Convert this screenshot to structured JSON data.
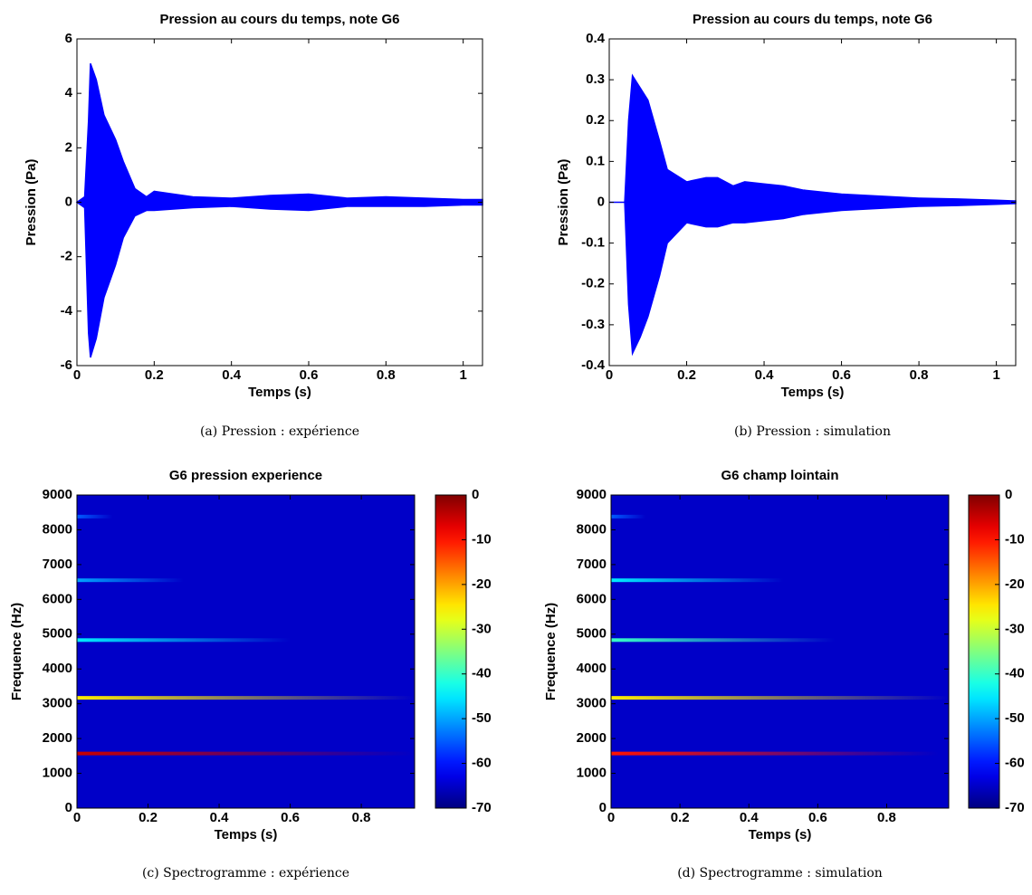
{
  "chart_data": [
    {
      "type": "envelope",
      "title": "Pression au cours du temps, note G6",
      "xlabel": "Temps (s)",
      "ylabel": "Pression (Pa)",
      "caption": "(a) Pression : expérience",
      "color": "#0000ff",
      "xlim": [
        0,
        1.05
      ],
      "xticks": [
        0,
        0.2,
        0.4,
        0.6,
        0.8,
        1
      ],
      "ylim": [
        -6,
        6
      ],
      "yticks": [
        -6,
        -4,
        -2,
        0,
        2,
        4,
        6
      ],
      "x": [
        0,
        0.02,
        0.03,
        0.035,
        0.05,
        0.07,
        0.1,
        0.12,
        0.15,
        0.18,
        0.2,
        0.25,
        0.3,
        0.4,
        0.5,
        0.6,
        0.7,
        0.8,
        0.9,
        1.0,
        1.05
      ],
      "upper": [
        0,
        0.2,
        3,
        5.1,
        4.5,
        3.2,
        2.3,
        1.5,
        0.5,
        0.2,
        0.4,
        0.3,
        0.2,
        0.15,
        0.25,
        0.3,
        0.15,
        0.2,
        0.15,
        0.1,
        0.1
      ],
      "lower": [
        0,
        -0.2,
        -4.8,
        -5.7,
        -5,
        -3.5,
        -2.3,
        -1.3,
        -0.5,
        -0.3,
        -0.3,
        -0.25,
        -0.2,
        -0.15,
        -0.25,
        -0.3,
        -0.15,
        -0.15,
        -0.15,
        -0.1,
        -0.1
      ]
    },
    {
      "type": "envelope",
      "title": "Pression au cours du temps, note G6",
      "xlabel": "Temps (s)",
      "ylabel": "Pression (Pa)",
      "caption": "(b) Pression : simulation",
      "color": "#0000ff",
      "xlim": [
        0,
        1.05
      ],
      "xticks": [
        0,
        0.2,
        0.4,
        0.6,
        0.8,
        1
      ],
      "ylim": [
        -0.4,
        0.4
      ],
      "yticks": [
        -0.4,
        -0.3,
        -0.2,
        -0.1,
        0,
        0.1,
        0.2,
        0.3,
        0.4
      ],
      "x": [
        0,
        0.04,
        0.05,
        0.06,
        0.08,
        0.1,
        0.13,
        0.15,
        0.2,
        0.25,
        0.28,
        0.32,
        0.35,
        0.4,
        0.45,
        0.5,
        0.6,
        0.7,
        0.8,
        0.9,
        1.0,
        1.05
      ],
      "upper": [
        0,
        0,
        0.2,
        0.31,
        0.28,
        0.25,
        0.15,
        0.08,
        0.05,
        0.06,
        0.06,
        0.04,
        0.05,
        0.045,
        0.04,
        0.03,
        0.02,
        0.015,
        0.01,
        0.008,
        0.005,
        0.003
      ],
      "lower": [
        0,
        0,
        -0.25,
        -0.37,
        -0.33,
        -0.28,
        -0.18,
        -0.1,
        -0.05,
        -0.06,
        -0.06,
        -0.05,
        -0.05,
        -0.045,
        -0.04,
        -0.03,
        -0.02,
        -0.015,
        -0.01,
        -0.008,
        -0.005,
        -0.003
      ]
    },
    {
      "type": "spectrogram",
      "title": "G6 pression  experience",
      "xlabel": "Temps (s)",
      "ylabel": "Frequence (Hz)",
      "caption": "(c) Spectrogramme : expérience",
      "xlim": [
        0,
        0.95
      ],
      "xticks": [
        0,
        0.2,
        0.4,
        0.6,
        0.8
      ],
      "ylim": [
        0,
        9000
      ],
      "yticks": [
        0,
        1000,
        2000,
        3000,
        4000,
        5000,
        6000,
        7000,
        8000,
        9000
      ],
      "clim": [
        -70,
        0
      ],
      "cticks": [
        0,
        -10,
        -20,
        -30,
        -40,
        -50,
        -60,
        -70
      ],
      "background": -65,
      "harmonics": [
        {
          "f": 1570,
          "level": -5,
          "end": 0.95
        },
        {
          "f": 3170,
          "level": -25,
          "end": 0.95
        },
        {
          "f": 4830,
          "level": -45,
          "end": 0.6
        },
        {
          "f": 6550,
          "level": -50,
          "end": 0.3
        },
        {
          "f": 8380,
          "level": -55,
          "end": 0.1
        }
      ]
    },
    {
      "type": "spectrogram",
      "title": "G6 champ lointain",
      "xlabel": "Temps (s)",
      "ylabel": "Frequence (Hz)",
      "caption": "(d) Spectrogramme : simulation",
      "xlim": [
        0,
        0.98
      ],
      "xticks": [
        0,
        0.2,
        0.4,
        0.6,
        0.8
      ],
      "ylim": [
        0,
        9000
      ],
      "yticks": [
        0,
        1000,
        2000,
        3000,
        4000,
        5000,
        6000,
        7000,
        8000,
        9000
      ],
      "clim": [
        -70,
        0
      ],
      "cticks": [
        0,
        -10,
        -20,
        -30,
        -40,
        -50,
        -60,
        -70
      ],
      "background": -65,
      "harmonics": [
        {
          "f": 1570,
          "level": -10,
          "end": 0.95
        },
        {
          "f": 3170,
          "level": -25,
          "end": 0.98
        },
        {
          "f": 4830,
          "level": -40,
          "end": 0.65
        },
        {
          "f": 6550,
          "level": -45,
          "end": 0.5
        },
        {
          "f": 8380,
          "level": -55,
          "end": 0.1
        }
      ]
    }
  ]
}
